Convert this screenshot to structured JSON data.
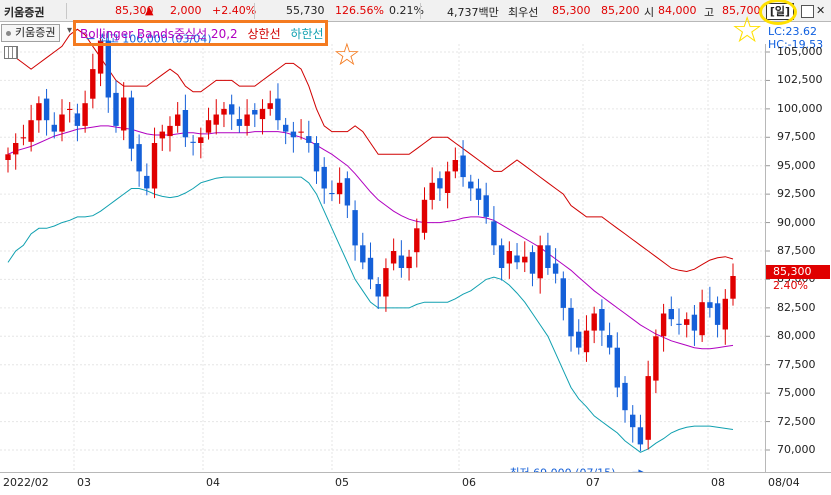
{
  "header": {
    "name": "키움증권",
    "price": "85,300",
    "direction": "▲",
    "change": "2,000",
    "change_pct": "+2.40%",
    "volume": "55,730",
    "volume_ratio": "126.56%",
    "turnover": "0.21%",
    "amount": "4,737백만",
    "best_bid_label": "최우선",
    "best_ask": "85,300",
    "best_bid": "85,200",
    "open_label": "시",
    "open": "84,000",
    "high_label": "고",
    "high": "85,700",
    "period": "[일]",
    "close": "✕"
  },
  "legend": {
    "tab": "키움증권",
    "indicator": "Bollinger Bands",
    "middle": "중심선 20,2",
    "upper": "상한선",
    "lower": "하한선"
  },
  "readouts": {
    "lc": "LC:23.62",
    "hc": "HC:-19.53"
  },
  "annotations": {
    "high": "최고 106,000 (03/04)",
    "low": "최저 69,000 (07/15)"
  },
  "last_price_tag": "85,300",
  "last_pct_tag": "2.40%",
  "colors": {
    "up": "#e00000",
    "down": "#1560d8",
    "upper_band": "#d00000",
    "middle_band": "#b000c0",
    "lower_band": "#10a0b0",
    "highlight_orange": "#f47b20",
    "highlight_yellow": "#ffe000"
  },
  "chart_data": {
    "type": "candlestick",
    "x_ticks": [
      "2022/02",
      "03",
      "04",
      "05",
      "06",
      "07",
      "08",
      "08/04"
    ],
    "y_ticks": [
      "105,000",
      "102,500",
      "100,000",
      "97,500",
      "95,000",
      "92,500",
      "90,000",
      "87,500",
      "85,000",
      "82,500",
      "80,000",
      "77,500",
      "75,000",
      "72,500",
      "70,000"
    ],
    "ylim": [
      67500,
      107500
    ],
    "period_high": 106000,
    "period_low": 69000,
    "last_close": 85300,
    "closes": [
      96000,
      97000,
      97500,
      99000,
      100500,
      99000,
      98000,
      99500,
      100000,
      98500,
      100500,
      103500,
      106000,
      101000,
      98500,
      101000,
      96500,
      94500,
      93000,
      97000,
      98000,
      98500,
      99500,
      97500,
      97000,
      97500,
      99000,
      99500,
      100000,
      99500,
      98500,
      99500,
      99500,
      100000,
      100500,
      99000,
      98000,
      97500,
      98000,
      97000,
      94500,
      93000,
      92500,
      93500,
      91500,
      88000,
      86500,
      85000,
      83500,
      86000,
      87500,
      86000,
      87000,
      89500,
      92000,
      93500,
      93000,
      94500,
      95500,
      94000,
      93000,
      92000,
      90500,
      88000,
      86000,
      87500,
      86500,
      87000,
      85500,
      88000,
      86000,
      85500,
      82500,
      80000,
      79000,
      80500,
      82000,
      80500,
      79000,
      75500,
      73500,
      72000,
      70500,
      76500,
      80000,
      82000,
      81500,
      81000,
      81500,
      80500,
      83000,
      82500,
      81000,
      83300,
      85300
    ],
    "upper_band": [
      105500,
      104500,
      104000,
      103500,
      104000,
      104500,
      105000,
      105500,
      106500,
      107000,
      106500,
      105500,
      104500,
      103500,
      102500,
      102000,
      102000,
      102000,
      102000,
      102500,
      103000,
      103500,
      103000,
      102000,
      101500,
      101500,
      102000,
      102500,
      102500,
      102500,
      102000,
      102000,
      102000,
      102500,
      103000,
      103500,
      104000,
      104000,
      103500,
      102000,
      100000,
      98500,
      98000,
      98000,
      98000,
      98500,
      98000,
      97000,
      96000,
      96000,
      96000,
      96000,
      96000,
      96500,
      97000,
      97500,
      97500,
      97500,
      97000,
      96500,
      96000,
      95500,
      95000,
      94500,
      94500,
      95000,
      95500,
      95000,
      94500,
      94000,
      93500,
      93000,
      92500,
      91500,
      91000,
      90500,
      90500,
      90500,
      90000,
      89500,
      89000,
      88500,
      88000,
      87500,
      87000,
      86500,
      86000,
      85800,
      85700,
      85900,
      86300,
      86700,
      86900,
      87000,
      86800
    ],
    "middle_band": [
      96000,
      96300,
      96500,
      96700,
      97000,
      97300,
      97600,
      97800,
      98000,
      98200,
      98300,
      98400,
      98500,
      98500,
      98400,
      98300,
      98200,
      98000,
      97800,
      97700,
      97700,
      97700,
      97800,
      97900,
      97900,
      97800,
      97800,
      97900,
      97900,
      97900,
      97900,
      97900,
      98000,
      98000,
      98000,
      98000,
      97900,
      97700,
      97500,
      97200,
      96800,
      96400,
      96000,
      95500,
      95000,
      94300,
      93500,
      92700,
      92000,
      91500,
      91000,
      90600,
      90300,
      90100,
      90000,
      90000,
      90000,
      90100,
      90200,
      90400,
      90500,
      90500,
      90400,
      90200,
      89800,
      89400,
      89000,
      88600,
      88200,
      87800,
      87300,
      86800,
      86300,
      85800,
      85200,
      84600,
      84000,
      83500,
      83000,
      82500,
      82000,
      81500,
      81000,
      80600,
      80200,
      79900,
      79600,
      79400,
      79200,
      79000,
      78900,
      78900,
      79000,
      79100,
      79200
    ],
    "lower_band": [
      86500,
      87500,
      88000,
      89000,
      89500,
      89500,
      89700,
      90000,
      90200,
      90500,
      90500,
      90600,
      91000,
      91500,
      92000,
      92500,
      93000,
      93000,
      92800,
      92500,
      92300,
      92200,
      92300,
      92600,
      93000,
      93500,
      93700,
      93900,
      94000,
      94000,
      94000,
      94000,
      94000,
      94000,
      94000,
      94000,
      94000,
      94000,
      94000,
      93500,
      92500,
      91000,
      89500,
      88000,
      86500,
      85000,
      84000,
      83000,
      82500,
      82500,
      82500,
      82500,
      82500,
      82800,
      83000,
      83000,
      83000,
      83000,
      83300,
      83700,
      84000,
      84500,
      85000,
      85200,
      85000,
      84500,
      83800,
      83000,
      82000,
      81000,
      80000,
      78500,
      77000,
      75500,
      74500,
      73800,
      73000,
      72500,
      72000,
      71500,
      70800,
      70300,
      69800,
      70100,
      70600,
      71000,
      71500,
      71800,
      72000,
      72100,
      72100,
      72100,
      72000,
      71900,
      71800
    ]
  }
}
